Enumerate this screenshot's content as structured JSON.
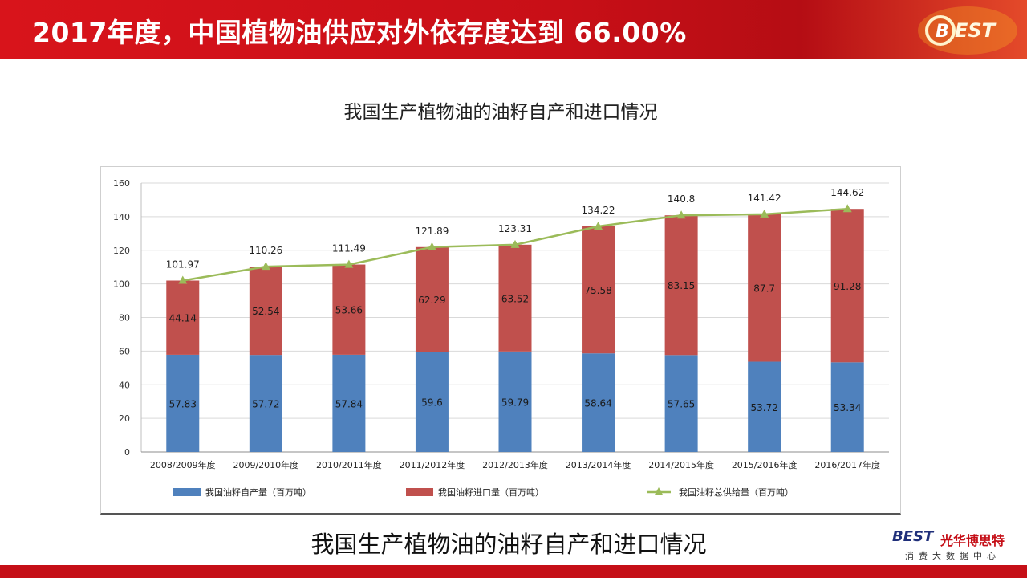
{
  "header": {
    "title": "2017年度，中国植物油供应对外依存度达到 66.00%",
    "logo_text": "BEST"
  },
  "chart_title": "我国生产植物油的油籽自产和进口情况",
  "caption": "我国生产植物油的油籽自产和进口情况",
  "brand": {
    "mark": "BEST",
    "name": "光华博思特",
    "sub": "消费大数据中心"
  },
  "colors": {
    "header_red": "#c80f17",
    "domestic": "#4f81bd",
    "imported": "#c0504d",
    "total": "#9bbb59"
  },
  "chart_data": {
    "type": "bar",
    "stacked": true,
    "categories": [
      "2008/2009年度",
      "2009/2010年度",
      "2010/2011年度",
      "2011/2012年度",
      "2012/2013年度",
      "2013/2014年度",
      "2014/2015年度",
      "2015/2016年度",
      "2016/2017年度"
    ],
    "series": [
      {
        "name": "我国油籽自产量（百万吨）",
        "values": [
          57.83,
          57.72,
          57.84,
          59.6,
          59.79,
          58.64,
          57.65,
          53.72,
          53.34
        ],
        "color": "#4f81bd"
      },
      {
        "name": "我国油籽进口量（百万吨）",
        "values": [
          44.14,
          52.54,
          53.66,
          62.29,
          63.52,
          75.58,
          83.15,
          87.7,
          91.28
        ],
        "color": "#c0504d"
      },
      {
        "name": "我国油籽总供给量（百万吨）",
        "type": "line",
        "values": [
          101.97,
          110.26,
          111.49,
          121.89,
          123.31,
          134.22,
          140.8,
          141.42,
          144.62
        ],
        "color": "#9bbb59"
      }
    ],
    "ylim": [
      0,
      160
    ],
    "yticks": [
      0,
      20,
      40,
      60,
      80,
      100,
      120,
      140,
      160
    ],
    "grid": true,
    "legend": "bottom"
  }
}
